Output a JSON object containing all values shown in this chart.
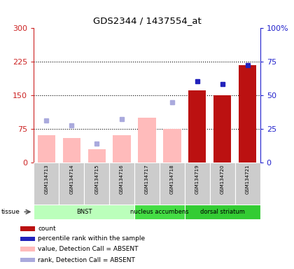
{
  "title": "GDS2344 / 1437554_at",
  "samples": [
    "GSM134713",
    "GSM134714",
    "GSM134715",
    "GSM134716",
    "GSM134717",
    "GSM134718",
    "GSM134719",
    "GSM134720",
    "GSM134721"
  ],
  "tissues": [
    {
      "label": "BNST",
      "start": 0,
      "end": 3,
      "color": "#bbffbb"
    },
    {
      "label": "nucleus accumbens",
      "start": 4,
      "end": 5,
      "color": "#44dd44"
    },
    {
      "label": "dorsal striatum",
      "start": 6,
      "end": 8,
      "color": "#33cc33"
    }
  ],
  "bars_absent_value": [
    62,
    55,
    30,
    62,
    100,
    75,
    null,
    null,
    null
  ],
  "bars_present_value": [
    null,
    null,
    null,
    null,
    null,
    null,
    162,
    150,
    218
  ],
  "dots_absent_rank_left": [
    95,
    83,
    43,
    97,
    null,
    135,
    null,
    null,
    null
  ],
  "dots_present_rank_left": [
    null,
    null,
    null,
    null,
    null,
    null,
    182,
    175,
    218
  ],
  "ylim_left": [
    0,
    300
  ],
  "ylim_right": [
    0,
    100
  ],
  "yticks_left": [
    0,
    75,
    150,
    225,
    300
  ],
  "yticks_right": [
    0,
    25,
    50,
    75,
    100
  ],
  "left_color": "#cc2222",
  "right_color": "#2222cc",
  "bar_absent_color": "#ffbbbb",
  "bar_present_color": "#bb1111",
  "dot_absent_color": "#aaaadd",
  "dot_present_color": "#2222bb",
  "bg_color": "#ffffff",
  "sample_box_color": "#cccccc",
  "tissue_colors": [
    "#bbffbb",
    "#44dd44",
    "#33cc33"
  ],
  "legend_items": [
    {
      "color": "#bb1111",
      "label": "count",
      "shape": "square"
    },
    {
      "color": "#2222bb",
      "label": "percentile rank within the sample",
      "shape": "square"
    },
    {
      "color": "#ffbbbb",
      "label": "value, Detection Call = ABSENT",
      "shape": "square"
    },
    {
      "color": "#aaaadd",
      "label": "rank, Detection Call = ABSENT",
      "shape": "square"
    }
  ]
}
